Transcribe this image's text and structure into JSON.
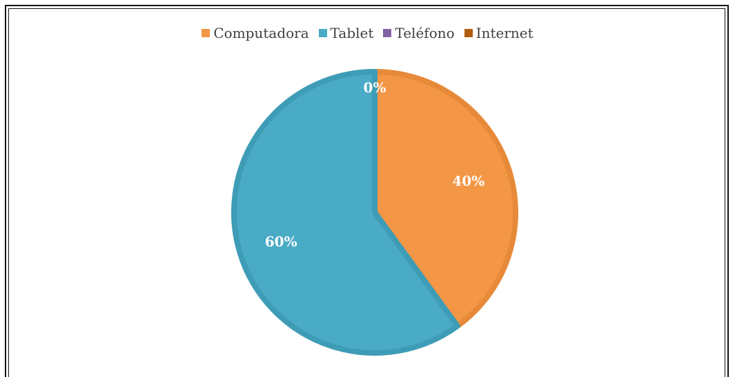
{
  "chart_data": {
    "type": "pie",
    "title": "",
    "legend_position": "top",
    "categories": [
      "Computadora",
      "Tablet",
      "Teléfono",
      "Internet"
    ],
    "values": [
      40,
      60,
      0,
      0
    ],
    "labels": [
      "40%",
      "60%",
      "0%",
      ""
    ],
    "colors": [
      "#F39645",
      "#4AABC6",
      "#8064A2",
      "#B35D10"
    ],
    "edge_colors": [
      "#E68A3A",
      "#3E9CB6",
      "#7055A0",
      "#A05000"
    ]
  }
}
